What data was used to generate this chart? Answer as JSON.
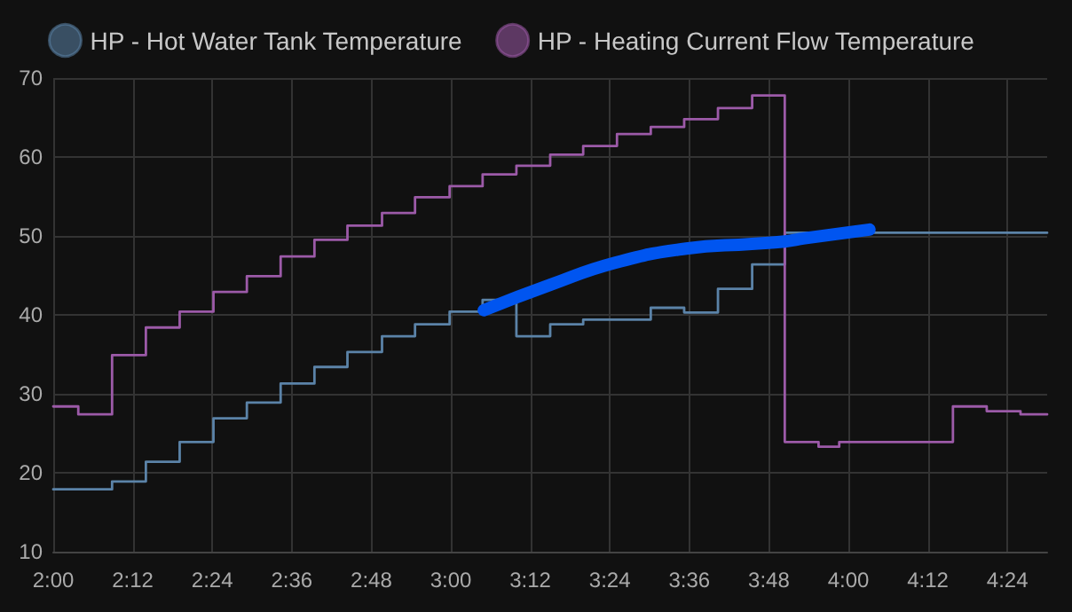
{
  "chart_data": {
    "type": "step",
    "series": [
      {
        "name": "HP - Hot Water Tank Temperature",
        "color": "#5b83a8",
        "x": [
          2,
          2.148,
          2.233,
          2.318,
          2.403,
          2.487,
          2.572,
          2.657,
          2.74,
          2.827,
          2.91,
          2.997,
          3.08,
          3.165,
          3.25,
          3.333,
          3.503,
          3.587,
          3.672,
          3.758,
          3.84,
          4.5
        ],
        "values": [
          17.9,
          18.9,
          21.4,
          23.9,
          26.9,
          28.9,
          31.3,
          33.4,
          35.3,
          37.3,
          38.8,
          40.4,
          41.9,
          37.3,
          38.8,
          39.4,
          40.9,
          40.3,
          43.3,
          46.4,
          50.4,
          50.4
        ]
      },
      {
        "name": "HP - Heating Current Flow Temperature",
        "color": "#9c5aa8",
        "x": [
          2,
          2.063,
          2.148,
          2.233,
          2.318,
          2.403,
          2.487,
          2.572,
          2.657,
          2.74,
          2.827,
          2.91,
          2.997,
          3.08,
          3.165,
          3.25,
          3.333,
          3.418,
          3.503,
          3.587,
          3.672,
          3.758,
          3.84,
          3.925,
          3.977,
          4.263,
          4.348,
          4.433,
          4.5
        ],
        "values": [
          28.4,
          27.4,
          34.9,
          38.4,
          40.4,
          42.9,
          44.9,
          47.4,
          49.5,
          51.3,
          52.9,
          54.9,
          56.3,
          57.8,
          58.9,
          60.3,
          61.4,
          62.9,
          63.8,
          64.8,
          66.2,
          67.8,
          23.9,
          23.3,
          23.9,
          28.4,
          27.8,
          27.4,
          27.4
        ]
      },
      {
        "type": "line",
        "color": "#0055f0",
        "x": [
          3.083,
          3.25,
          3.413,
          3.592,
          3.757,
          3.84,
          3.89,
          4.053
        ],
        "values": [
          40.6,
          43.8,
          46.6,
          48.4,
          49,
          49.3,
          49.7,
          50.8
        ]
      }
    ],
    "xlim": [
      2,
      4.5
    ],
    "xticks": [
      {
        "value": 2,
        "label": "2:00"
      },
      {
        "value": 2.2,
        "label": "2:12"
      },
      {
        "value": 2.4,
        "label": "2:24"
      },
      {
        "value": 2.6,
        "label": "2:36"
      },
      {
        "value": 2.8,
        "label": "2:48"
      },
      {
        "value": 3,
        "label": "3:00"
      },
      {
        "value": 3.2,
        "label": "3:12"
      },
      {
        "value": 3.4,
        "label": "3:24"
      },
      {
        "value": 3.6,
        "label": "3:36"
      },
      {
        "value": 3.8,
        "label": "3:48"
      },
      {
        "value": 4,
        "label": "4:00"
      },
      {
        "value": 4.2,
        "label": "4:12"
      },
      {
        "value": 4.4,
        "label": "4:24"
      }
    ],
    "ylim": [
      10,
      70
    ],
    "yticks": [
      10,
      20,
      30,
      40,
      50,
      60,
      70
    ],
    "grid": true,
    "legend": "top left",
    "marker": "none",
    "line_style": "solid"
  }
}
